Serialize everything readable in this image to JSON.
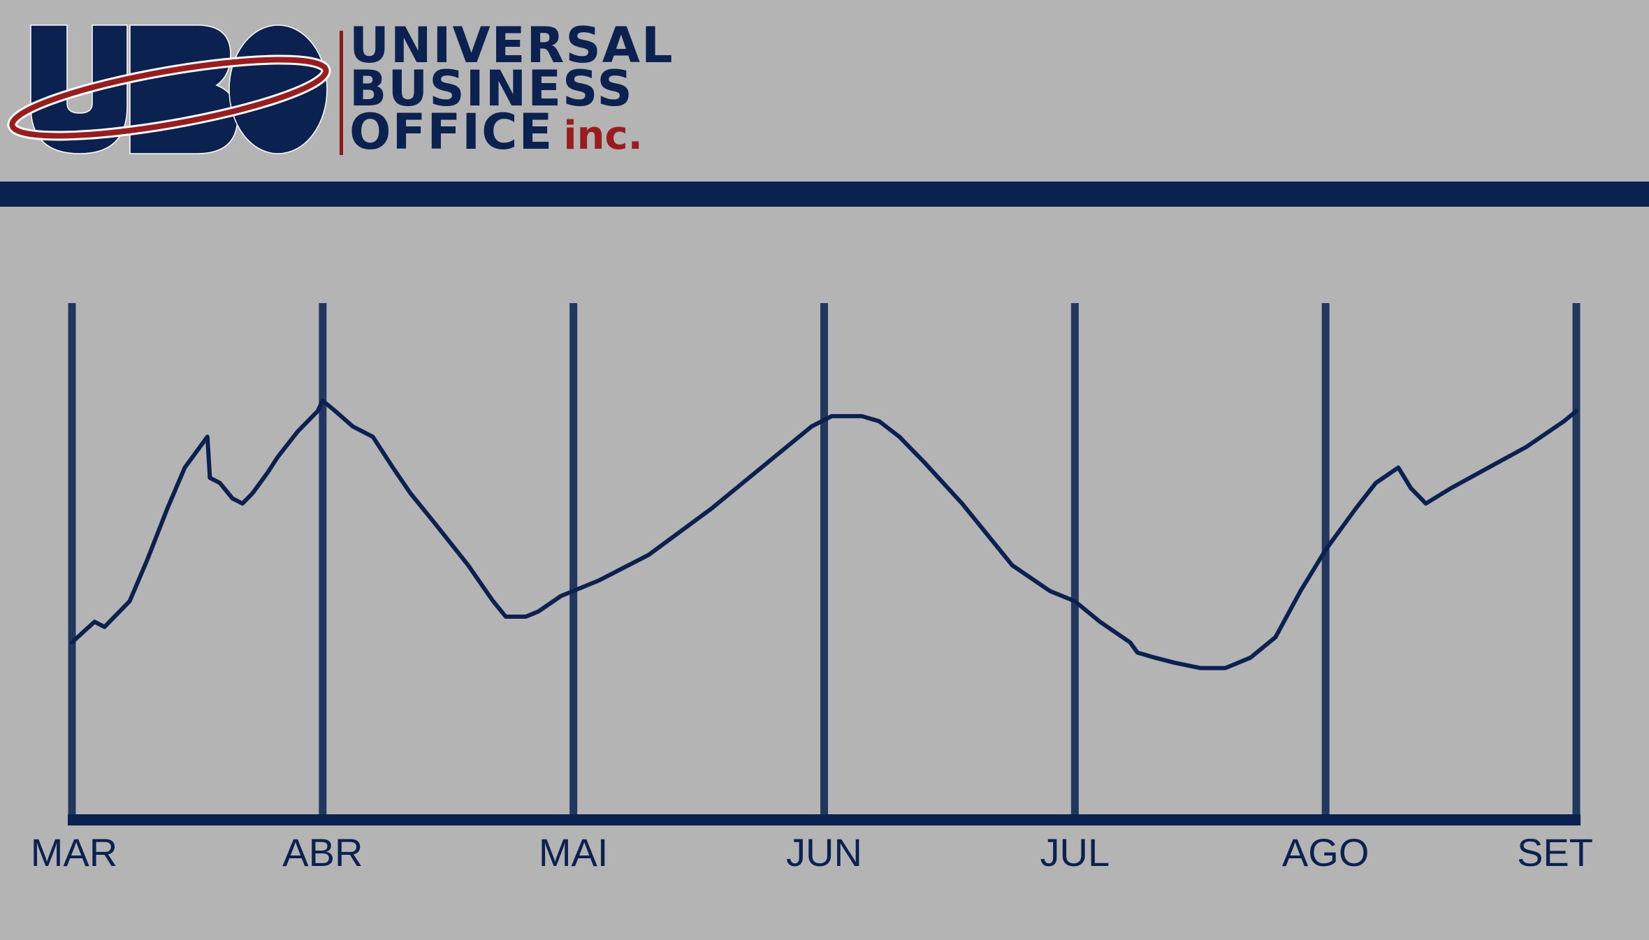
{
  "brand": {
    "line1": "UNIVERSAL",
    "line2": "BUSINESS",
    "line3": "OFFICE",
    "suffix": "inc.",
    "logo_text": "UBO",
    "colors": {
      "navy": "#0b2250",
      "red": "#9a1c1c",
      "background": "#b4b4b4"
    }
  },
  "chart_data": {
    "type": "line",
    "title": "",
    "xlabel": "",
    "ylabel": "",
    "categories": [
      "MAR",
      "ABR",
      "MAI",
      "JUN",
      "JUL",
      "AGO",
      "SET"
    ],
    "grid": true,
    "legend": "none",
    "xlim": [
      0,
      6
    ],
    "ylim": [
      0,
      100
    ],
    "series": [
      {
        "color": "#0b2250",
        "points": [
          [
            0.0,
            34
          ],
          [
            0.09,
            38
          ],
          [
            0.13,
            37
          ],
          [
            0.23,
            42
          ],
          [
            0.3,
            50
          ],
          [
            0.38,
            60
          ],
          [
            0.45,
            68
          ],
          [
            0.54,
            74
          ],
          [
            0.55,
            66
          ],
          [
            0.59,
            65
          ],
          [
            0.64,
            62
          ],
          [
            0.68,
            61
          ],
          [
            0.72,
            63
          ],
          [
            0.78,
            67
          ],
          [
            0.82,
            70
          ],
          [
            0.9,
            75
          ],
          [
            0.98,
            79
          ],
          [
            1.0,
            81
          ],
          [
            1.05,
            79
          ],
          [
            1.12,
            76
          ],
          [
            1.2,
            74
          ],
          [
            1.28,
            68
          ],
          [
            1.35,
            63
          ],
          [
            1.45,
            57
          ],
          [
            1.58,
            49
          ],
          [
            1.68,
            42
          ],
          [
            1.73,
            39
          ],
          [
            1.81,
            39
          ],
          [
            1.86,
            40
          ],
          [
            1.95,
            43
          ],
          [
            2.1,
            46
          ],
          [
            2.3,
            51
          ],
          [
            2.55,
            60
          ],
          [
            2.8,
            70
          ],
          [
            2.95,
            76
          ],
          [
            3.03,
            78
          ],
          [
            3.15,
            78
          ],
          [
            3.22,
            77
          ],
          [
            3.3,
            74
          ],
          [
            3.4,
            69
          ],
          [
            3.55,
            61
          ],
          [
            3.75,
            49
          ],
          [
            3.9,
            44
          ],
          [
            4.0,
            42
          ],
          [
            4.1,
            38
          ],
          [
            4.22,
            34
          ],
          [
            4.25,
            32
          ],
          [
            4.32,
            31
          ],
          [
            4.4,
            30
          ],
          [
            4.5,
            29
          ],
          [
            4.6,
            29
          ],
          [
            4.7,
            31
          ],
          [
            4.8,
            35
          ],
          [
            4.9,
            44
          ],
          [
            5.0,
            52
          ],
          [
            5.12,
            60
          ],
          [
            5.2,
            65
          ],
          [
            5.29,
            68
          ],
          [
            5.34,
            64
          ],
          [
            5.4,
            61
          ],
          [
            5.5,
            64
          ],
          [
            5.65,
            68
          ],
          [
            5.8,
            72
          ],
          [
            5.95,
            77
          ],
          [
            6.0,
            79
          ]
        ]
      }
    ]
  }
}
